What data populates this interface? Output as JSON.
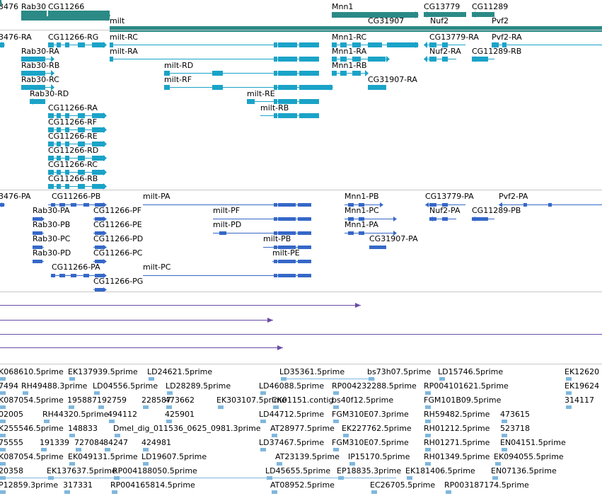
{
  "colors": {
    "gene": "#2b8a86",
    "mrna_ext": "#1aa3c8",
    "mrna_cds": "#3568c8",
    "compl": "#6a4ca6",
    "est": "#7fb7dd",
    "separator": "#c8c8c8"
  },
  "icons": {
    "strand_plus": "right-arrow-glyph",
    "strand_minus": "left-arrow-glyph",
    "terminal": "arrowhead-glyph"
  },
  "genes": [
    {
      "label": "3476"
    },
    {
      "label": "Rab30"
    },
    {
      "label": "CG11266"
    },
    {
      "label": "milt"
    },
    {
      "label": "Mnn1"
    },
    {
      "label": "CG31907"
    },
    {
      "label": "CG13779"
    },
    {
      "label": "Nuf2"
    },
    {
      "label": "CG11289"
    },
    {
      "label": "Pvf2"
    }
  ],
  "ext_transcripts": [
    {
      "label": "3476-RA"
    },
    {
      "label": "CG11266-RG"
    },
    {
      "label": "milt-RC"
    },
    {
      "label": "Mnn1-RC"
    },
    {
      "label": "CG13779-RA"
    },
    {
      "label": "Pvf2-RA"
    },
    {
      "label": "Rab30-RA"
    },
    {
      "label": "milt-RA"
    },
    {
      "label": "Mnn1-RA"
    },
    {
      "label": "Nuf2-RA"
    },
    {
      "label": "CG11289-RB"
    },
    {
      "label": "Rab30-RB"
    },
    {
      "label": "milt-RD"
    },
    {
      "label": "Mnn1-RB"
    },
    {
      "label": "Rab30-RC"
    },
    {
      "label": "milt-RF"
    },
    {
      "label": "CG31907-RA"
    },
    {
      "label": "Rab30-RD"
    },
    {
      "label": "milt-RE"
    },
    {
      "label": "milt-RB"
    },
    {
      "label": "CG11266-RA"
    },
    {
      "label": "CG11266-RF"
    },
    {
      "label": "CG11266-RE"
    },
    {
      "label": "CG11266-RD"
    },
    {
      "label": "CG11266-RC"
    },
    {
      "label": "CG11266-RB"
    }
  ],
  "cds_transcripts": [
    {
      "label": "3476-PA"
    },
    {
      "label": "CG11266-PB"
    },
    {
      "label": "milt-PA"
    },
    {
      "label": "Mnn1-PB"
    },
    {
      "label": "CG13779-PA"
    },
    {
      "label": "Pvf2-PA"
    },
    {
      "label": "Rab30-PA"
    },
    {
      "label": "CG11266-PF"
    },
    {
      "label": "milt-PF"
    },
    {
      "label": "Mnn1-PC"
    },
    {
      "label": "Nuf2-PA"
    },
    {
      "label": "CG11289-PB"
    },
    {
      "label": "Rab30-PB"
    },
    {
      "label": "CG11266-PE"
    },
    {
      "label": "milt-PD"
    },
    {
      "label": "Mnn1-PA"
    },
    {
      "label": "Rab30-PC"
    },
    {
      "label": "CG11266-PD"
    },
    {
      "label": "milt-PB"
    },
    {
      "label": "CG31907-PA"
    },
    {
      "label": "Rab30-PD"
    },
    {
      "label": "CG11266-PC"
    },
    {
      "label": "milt-PE"
    },
    {
      "label": "CG11266-PA"
    },
    {
      "label": "milt-PC"
    },
    {
      "label": "CG11266-PG"
    }
  ],
  "est_rows": [
    {
      "items": [
        {
          "label": "K068610.5prime"
        },
        {
          "label": "EK137939.5prime"
        },
        {
          "label": "LD24621.5prime"
        },
        {
          "label": "LD35361.5prime"
        },
        {
          "label": "bs73h07.5prime"
        },
        {
          "label": "LD15746.5prime"
        },
        {
          "label": "EK12620"
        }
      ]
    },
    {
      "items": [
        {
          "label": "7494"
        },
        {
          "label": "RH49488.3prime"
        },
        {
          "label": "LD04556.5prime"
        },
        {
          "label": "LD28289.5prime"
        },
        {
          "label": "LD46088.5prime"
        },
        {
          "label": "RP004232288.5prime"
        },
        {
          "label": "RP004101621.5prime"
        },
        {
          "label": "EK19624"
        }
      ]
    },
    {
      "items": [
        {
          "label": "K087054.5prime"
        },
        {
          "label": "195887"
        },
        {
          "label": "192759"
        },
        {
          "label": "228587"
        },
        {
          "label": "473662"
        },
        {
          "label": "EK303107.5prime"
        },
        {
          "label": "CK01151.contig"
        },
        {
          "label": "bs40f12.5prime"
        },
        {
          "label": "FGM101B09.5prime"
        },
        {
          "label": "314117"
        }
      ]
    },
    {
      "items": [
        {
          "label": "02005"
        },
        {
          "label": "RH44320.5prime"
        },
        {
          "label": "494112"
        },
        {
          "label": "425901"
        },
        {
          "label": "LD44712.5prime"
        },
        {
          "label": "FGM310E07.3prime"
        },
        {
          "label": "RH59482.5prime"
        },
        {
          "label": "473615"
        }
      ]
    },
    {
      "items": [
        {
          "label": "K255546.5prime"
        },
        {
          "label": "148833"
        },
        {
          "label": "Dmel_dig_011536_0625_0981.3prime"
        },
        {
          "label": "AT28977.5prime"
        },
        {
          "label": "EK227762.5prime"
        },
        {
          "label": "RH01212.5prime"
        },
        {
          "label": "523718"
        }
      ]
    },
    {
      "items": [
        {
          "label": "75555"
        },
        {
          "label": "191339"
        },
        {
          "label": "727084"
        },
        {
          "label": "84247"
        },
        {
          "label": "424981"
        },
        {
          "label": "LD37467.5prime"
        },
        {
          "label": "FGM310E07.5prime"
        },
        {
          "label": "RH01271.5prime"
        },
        {
          "label": "EN04151.5prime"
        }
      ]
    },
    {
      "items": [
        {
          "label": "K087054.5prime"
        },
        {
          "label": "EK049131.5prime"
        },
        {
          "label": "LD19607.5prime"
        },
        {
          "label": "AT23139.5prime"
        },
        {
          "label": "IP15170.5prime"
        },
        {
          "label": "RH01349.5prime"
        },
        {
          "label": "EK094055.5prime"
        }
      ]
    },
    {
      "items": [
        {
          "label": "20358"
        },
        {
          "label": "EK137637.5prime"
        },
        {
          "label": "RP004188050.5prime"
        },
        {
          "label": "LD45655.5prime"
        },
        {
          "label": "EP18835.3prime"
        },
        {
          "label": "EK181406.5prime"
        },
        {
          "label": "EN07136.5prime"
        }
      ]
    },
    {
      "items": [
        {
          "label": "P12859.3prime"
        },
        {
          "label": "317331"
        },
        {
          "label": "RP004165814.5prime"
        },
        {
          "label": "AT08952.5prime"
        },
        {
          "label": "EC26705.5prime"
        },
        {
          "label": "RP003187174.5prime"
        }
      ]
    }
  ]
}
